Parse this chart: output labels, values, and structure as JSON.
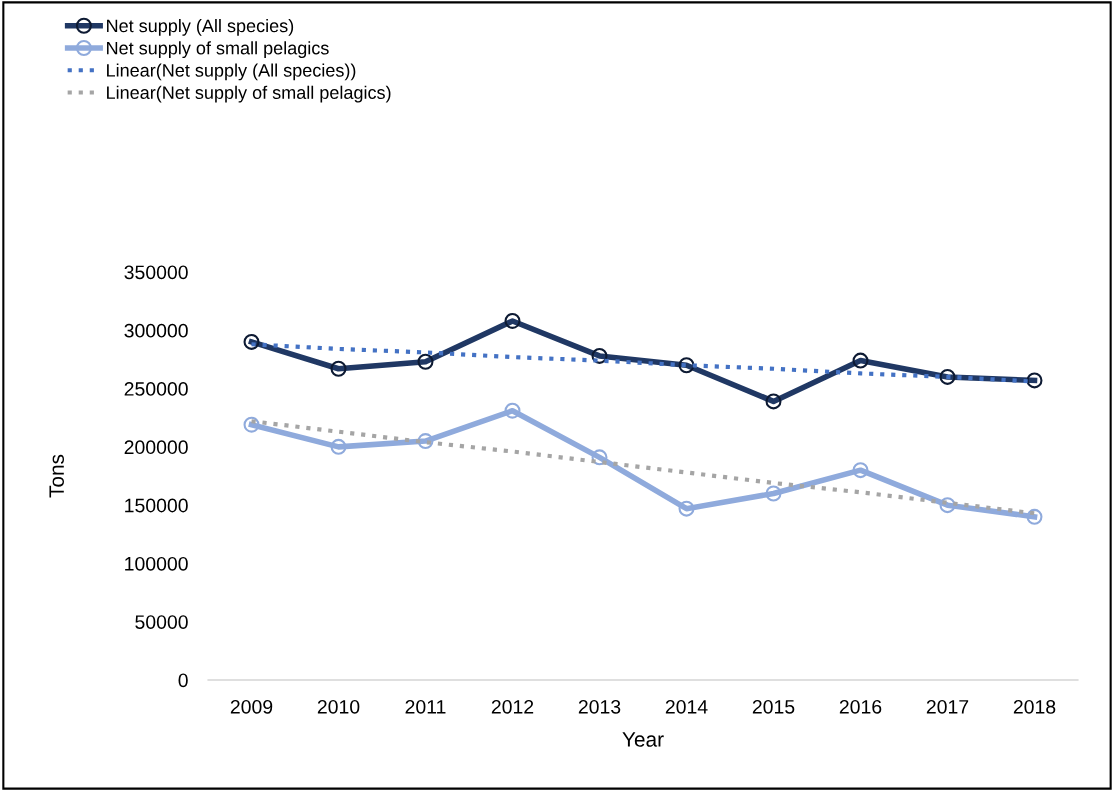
{
  "chart_data": {
    "type": "line",
    "xlabel": "Year",
    "ylabel": "Tons",
    "categories": [
      "2009",
      "2010",
      "2011",
      "2012",
      "2013",
      "2014",
      "2015",
      "2016",
      "2017",
      "2018"
    ],
    "series": [
      {
        "name": "Net supply (All species)",
        "color": "#203864",
        "marker": "circle",
        "line_style": "solid",
        "values": [
          290000,
          267000,
          273000,
          308000,
          278000,
          270000,
          239000,
          274000,
          260000,
          257000
        ]
      },
      {
        "name": "Net supply of small pelagics",
        "color": "#8faadc",
        "marker": "circle",
        "line_style": "solid",
        "values": [
          219000,
          200000,
          205000,
          231000,
          191000,
          147000,
          160000,
          180000,
          150000,
          140000
        ]
      },
      {
        "name": "Linear(Net supply (All species))",
        "color": "#4472c4",
        "marker": "none",
        "line_style": "dotted",
        "values": [
          288000,
          284000,
          281000,
          277000,
          274000,
          270000,
          267000,
          263000,
          260000,
          256000
        ]
      },
      {
        "name": "Linear(Net supply of small pelagics)",
        "color": "#a5a5a5",
        "marker": "none",
        "line_style": "dotted",
        "values": [
          222000,
          213000,
          204000,
          196000,
          187000,
          178000,
          169000,
          161000,
          152000,
          143000
        ]
      }
    ],
    "ylim": [
      0,
      350000
    ],
    "yticks": [
      0,
      50000,
      100000,
      150000,
      200000,
      250000,
      300000,
      350000
    ],
    "grid": false,
    "legend": "top left"
  }
}
